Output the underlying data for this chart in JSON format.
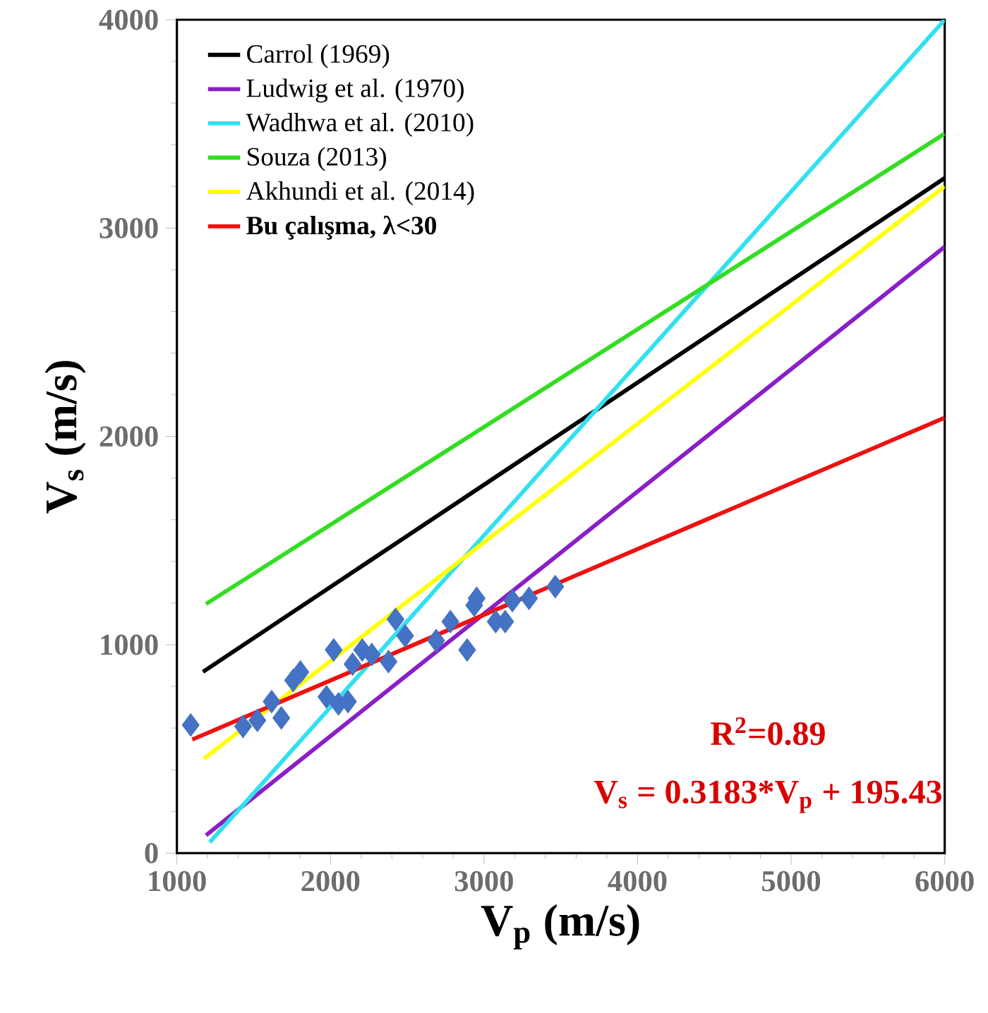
{
  "chart_data": {
    "type": "scatter",
    "xlabel": "V$_{p}$ (m/s)",
    "ylabel": "V$_{s}$ (m/s)",
    "xlim": [
      1000,
      6000
    ],
    "ylim": [
      0,
      4000
    ],
    "xticks": [
      1000,
      2000,
      3000,
      4000,
      5000,
      6000
    ],
    "yticks": [
      0,
      1000,
      2000,
      3000,
      4000
    ],
    "legend": "top left",
    "grid": false,
    "annotations": [
      "R$^{2}$=0.89",
      "V$_{s}$ = 0.3183*V$_{p}$ + 195.43"
    ],
    "series": [
      {
        "marker": "diamond",
        "color": "#4472c4",
        "x": [
          1090,
          1431,
          1524,
          1617,
          1680,
          1757,
          1804,
          1974,
          2021,
          2052,
          2114,
          2144,
          2207,
          2269,
          2378,
          2424,
          2486,
          2688,
          2781,
          2890,
          2936,
          2952,
          3076,
          3138,
          3185,
          3293,
          3464
        ],
        "values": [
          615,
          608,
          637,
          727,
          649,
          829,
          869,
          750,
          975,
          716,
          727,
          907,
          975,
          953,
          919,
          1122,
          1043,
          1020,
          1111,
          975,
          1190,
          1223,
          1111,
          1111,
          1212,
          1223,
          1279
        ]
      },
      {
        "type": "line",
        "name": "Carrol (1969)",
        "color": "#000000",
        "x": [
          1170,
          6000
        ],
        "values": [
          870,
          3240
        ]
      },
      {
        "type": "line",
        "name": "Ludwig et al. (1970)",
        "color": "#8a1ec8",
        "x": [
          1190,
          6000
        ],
        "values": [
          86,
          2910
        ]
      },
      {
        "type": "line",
        "name": "Wadhwa et al. (2010)",
        "color": "#33e0f0",
        "x": [
          1214,
          6000
        ],
        "values": [
          52,
          4000
        ]
      },
      {
        "type": "line",
        "name": "Souza (2013)",
        "color": "#33dd22",
        "x": [
          1190,
          6000
        ],
        "values": [
          1196,
          3453
        ]
      },
      {
        "type": "line",
        "name": "Akhundi et al. (2014)",
        "color": "#ffff00",
        "x": [
          1176,
          6000
        ],
        "values": [
          453,
          3200
        ]
      },
      {
        "type": "line",
        "name": "**Bu çalışma, λ<30**",
        "color": "#ee1111",
        "x": [
          1100,
          6000
        ],
        "values": [
          545,
          2090
        ]
      }
    ]
  }
}
